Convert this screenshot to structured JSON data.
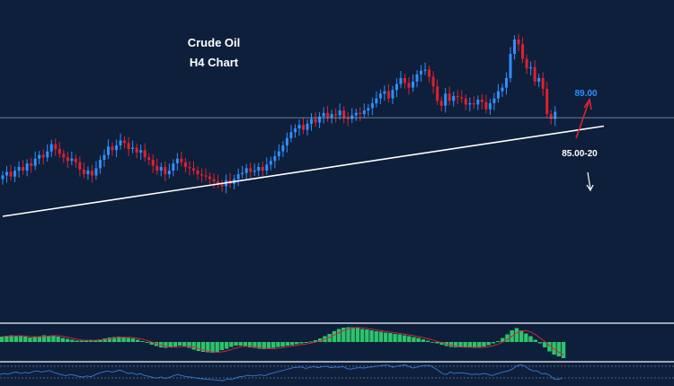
{
  "chart_data": {
    "type": "candlestick",
    "title": "Crude Oil",
    "subtitle": "H4 Chart",
    "colors": {
      "background": "#0d1f3a",
      "up_candle": "#2f8fff",
      "down_candle": "#e0202e",
      "trendline": "#ffffff",
      "level_line": "#8fa3b8",
      "macd_histogram": "#2cc36b",
      "macd_signal": "#d02838",
      "rsi_line": "#3a78d8",
      "panel_separator": "#cfd6de",
      "up_arrow": "#e0202e",
      "down_arrow": "#ffffff",
      "target_label": "#2f8fff"
    },
    "price_closes": [
      84.2,
      84.5,
      84.1,
      84.6,
      84.9,
      84.6,
      85.2,
      85.0,
      85.6,
      85.9,
      85.7,
      86.2,
      86.8,
      86.4,
      86.0,
      85.7,
      85.4,
      85.6,
      85.3,
      84.7,
      84.3,
      84.6,
      84.2,
      84.8,
      85.5,
      85.9,
      86.6,
      86.3,
      86.7,
      87.1,
      86.9,
      86.4,
      86.5,
      86.1,
      86.3,
      85.7,
      85.5,
      85.0,
      84.6,
      84.9,
      84.3,
      84.6,
      85.2,
      85.6,
      85.3,
      84.9,
      84.8,
      84.6,
      84.3,
      84.2,
      84.1,
      83.9,
      83.7,
      83.5,
      83.3,
      83.8,
      83.5,
      83.9,
      84.3,
      84.4,
      84.8,
      84.5,
      84.6,
      84.9,
      84.6,
      85.1,
      85.4,
      85.8,
      86.2,
      86.7,
      87.3,
      87.8,
      88.1,
      88.4,
      88.0,
      88.5,
      88.9,
      88.6,
      89.1,
      89.4,
      89.0,
      89.3,
      89.2,
      89.6,
      89.0,
      88.9,
      89.2,
      89.4,
      89.3,
      89.6,
      89.8,
      90.2,
      90.6,
      91.0,
      91.2,
      90.6,
      91.3,
      91.8,
      92.3,
      91.9,
      91.5,
      92.0,
      92.6,
      92.9,
      93.0,
      92.4,
      91.6,
      90.4,
      90.0,
      91.0,
      90.4,
      90.8,
      90.7,
      90.6,
      90.1,
      90.2,
      90.1,
      90.5,
      90.3,
      89.7,
      90.2,
      90.6,
      91.2,
      91.5,
      92.3,
      94.3,
      95.5,
      95.1,
      93.9,
      93.1,
      93.2,
      92.0,
      92.3,
      91.4,
      89.3,
      88.9,
      89.5
    ],
    "horizontal_level": 89.0,
    "trendline": {
      "start": [
        0,
        80.8
      ],
      "end": [
        148,
        88.3
      ]
    },
    "annotations": {
      "target_label": "89.00",
      "support_label": "85.00-20"
    },
    "macd_histogram": [
      1.2,
      1.4,
      1.5,
      1.3,
      1.4,
      1.2,
      1.0,
      1.1,
      1.3,
      1.5,
      1.4,
      1.5,
      1.2,
      0.9,
      0.7,
      0.5,
      0.3,
      0.3,
      0.4,
      0.5,
      0.4,
      0.6,
      0.8,
      1.0,
      1.1,
      1.2,
      1.0,
      0.9,
      0.8,
      0.5,
      0.2,
      -0.2,
      -0.6,
      -0.9,
      -1.2,
      -1.3,
      -1.2,
      -1.0,
      -0.8,
      -0.9,
      -1.3,
      -1.7,
      -2.0,
      -2.2,
      -2.3,
      -2.4,
      -2.2,
      -1.8,
      -1.5,
      -1.1,
      -0.8,
      -0.8,
      -1.0,
      -1.2,
      -1.3,
      -1.5,
      -1.6,
      -1.5,
      -1.3,
      -1.1,
      -1.0,
      -0.8,
      -0.7,
      -0.5,
      -0.3,
      -0.2,
      0.1,
      0.4,
      0.8,
      1.3,
      1.8,
      2.4,
      2.9,
      3.2,
      3.3,
      3.3,
      3.1,
      2.9,
      2.8,
      2.6,
      2.4,
      2.3,
      2.1,
      2.0,
      1.8,
      1.7,
      1.5,
      1.3,
      1.1,
      0.9,
      0.6,
      0.3,
      0.0,
      -0.3,
      -0.6,
      -0.9,
      -1.1,
      -1.2,
      -1.2,
      -1.1,
      -1.2,
      -1.3,
      -1.2,
      -1.0,
      -0.7,
      -0.3,
      0.2,
      0.9,
      1.7,
      2.6,
      3.1,
      2.6,
      1.9,
      1.3,
      0.5,
      -0.3,
      -1.2,
      -2.1,
      -2.8,
      -3.2,
      -3.6
    ],
    "rsi": [
      52,
      55,
      53,
      57,
      59,
      55,
      58,
      56,
      60,
      62,
      59,
      61,
      63,
      58,
      54,
      51,
      49,
      52,
      50,
      47,
      45,
      48,
      46,
      51,
      56,
      59,
      62,
      59,
      61,
      64,
      60,
      55,
      56,
      52,
      54,
      49,
      47,
      44,
      42,
      45,
      41,
      44,
      49,
      52,
      49,
      46,
      45,
      43,
      41,
      40,
      39,
      38,
      37,
      36,
      35,
      40,
      38,
      42,
      46,
      47,
      50,
      48,
      49,
      51,
      49,
      53,
      56,
      59,
      62,
      65,
      68,
      71,
      72,
      73,
      69,
      72,
      74,
      71,
      74,
      75,
      71,
      73,
      72,
      74,
      68,
      67,
      70,
      71,
      70,
      72,
      73,
      75,
      76,
      78,
      78,
      72,
      75,
      77,
      79,
      74,
      70,
      73,
      76,
      77,
      77,
      71,
      64,
      55,
      52,
      59,
      55,
      57,
      56,
      55,
      52,
      53,
      52,
      55,
      53,
      49,
      53,
      56,
      60,
      62,
      67,
      76,
      79,
      76,
      67,
      62,
      62,
      54,
      55,
      50,
      40,
      38,
      42
    ]
  }
}
